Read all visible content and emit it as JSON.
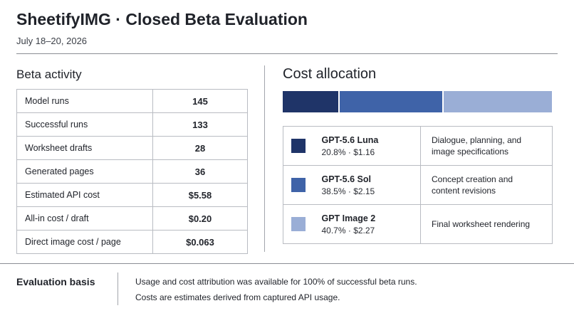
{
  "header": {
    "title": "SheetifyIMG · Closed Beta Evaluation",
    "date": "July 18–20, 2026"
  },
  "activity": {
    "heading": "Beta activity",
    "rows": [
      {
        "label": "Model runs",
        "value": "145"
      },
      {
        "label": "Successful runs",
        "value": "133"
      },
      {
        "label": "Worksheet drafts",
        "value": "28"
      },
      {
        "label": "Generated pages",
        "value": "36"
      },
      {
        "label": "Estimated API cost",
        "value": "$5.58"
      },
      {
        "label": "All-in cost / draft",
        "value": "$0.20"
      },
      {
        "label": "Direct image cost / page",
        "value": "$0.063"
      }
    ]
  },
  "cost_allocation": {
    "heading": "Cost allocation",
    "models": [
      {
        "name": "GPT-5.6 Luna",
        "share": "20.8% · $1.16",
        "percent": 20.8,
        "color": "#1f3468",
        "description": [
          "Dialogue, planning, and",
          "image specifications"
        ]
      },
      {
        "name": "GPT-5.6 Sol",
        "share": "38.5% · $2.15",
        "percent": 38.5,
        "color": "#3f63a8",
        "description": [
          "Concept creation and",
          "content revisions"
        ]
      },
      {
        "name": "GPT Image 2",
        "share": "40.7% · $2.27",
        "percent": 40.7,
        "color": "#9aaed6",
        "description": [
          "Final worksheet rendering",
          ""
        ]
      }
    ]
  },
  "basis": {
    "label": "Evaluation basis",
    "line1": "Usage and cost attribution was available for 100% of successful beta runs.",
    "line2": "Costs are estimates derived from captured API usage."
  }
}
